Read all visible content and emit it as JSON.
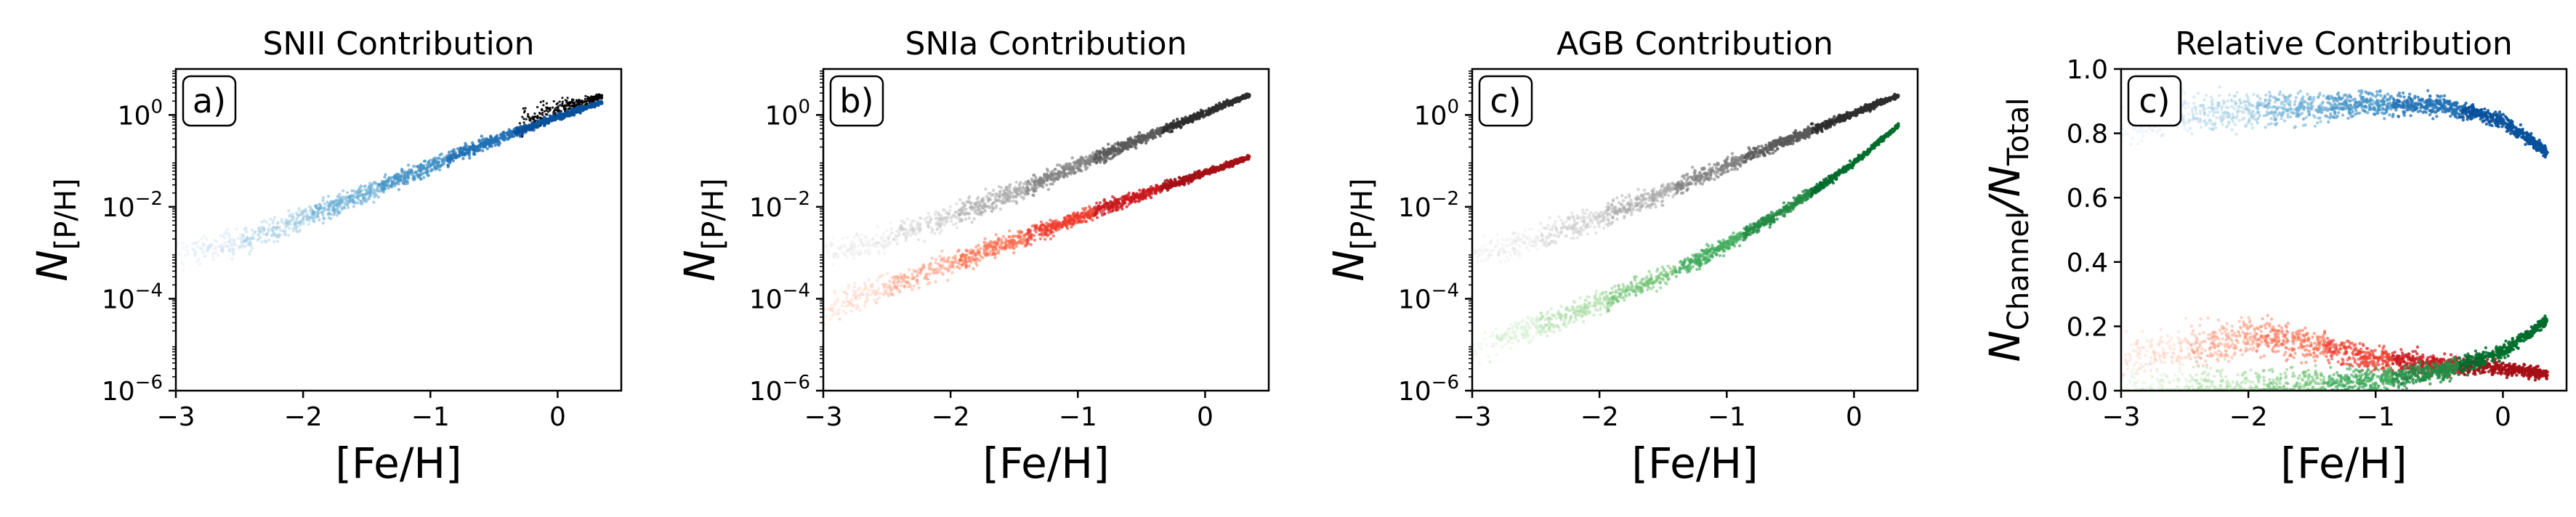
{
  "chart_data": [
    {
      "type": "scatter",
      "title": "SNII Contribution",
      "panel_tag": "a)",
      "xlabel": "[Fe/H]",
      "ylabel": "N[P/H]",
      "ylabel_parts": {
        "main": "N",
        "sub": "[P/H]"
      },
      "xlim": [
        -3,
        0.5
      ],
      "ylim": [
        1e-06,
        10
      ],
      "yscale": "log",
      "xticks": [
        -3,
        -2,
        -1,
        0
      ],
      "xtick_labels": [
        "−3",
        "−2",
        "−1",
        "0"
      ],
      "yticks": [
        1e-06,
        0.0001,
        0.01,
        1
      ],
      "ytick_labels": [
        {
          "base": "10",
          "exp": "−6"
        },
        {
          "base": "10",
          "exp": "−4"
        },
        {
          "base": "10",
          "exp": "−2"
        },
        {
          "base": "10",
          "exp": "0"
        }
      ],
      "series": [
        {
          "role": "total",
          "color": "#000000",
          "trend": [
            [
              -0.3,
              0.7
            ],
            [
              0.35,
              2.6
            ]
          ]
        },
        {
          "role": "channel",
          "colormap": "Blues",
          "trend": [
            [
              -3.0,
              0.0009
            ],
            [
              -2.5,
              0.0018
            ],
            [
              -2.0,
              0.0055
            ],
            [
              -1.5,
              0.02
            ],
            [
              -1.0,
              0.08
            ],
            [
              -0.5,
              0.28
            ],
            [
              0.0,
              0.9
            ],
            [
              0.35,
              1.9
            ]
          ]
        }
      ]
    },
    {
      "type": "scatter",
      "title": "SNIa Contribution",
      "panel_tag": "b)",
      "xlabel": "[Fe/H]",
      "ylabel": "N[P/H]",
      "ylabel_parts": {
        "main": "N",
        "sub": "[P/H]"
      },
      "xlim": [
        -3,
        0.5
      ],
      "ylim": [
        1e-06,
        10
      ],
      "yscale": "log",
      "xticks": [
        -3,
        -2,
        -1,
        0
      ],
      "xtick_labels": [
        "−3",
        "−2",
        "−1",
        "0"
      ],
      "yticks": [
        1e-06,
        0.0001,
        0.01,
        1
      ],
      "ytick_labels": [
        {
          "base": "10",
          "exp": "−6"
        },
        {
          "base": "10",
          "exp": "−4"
        },
        {
          "base": "10",
          "exp": "−2"
        },
        {
          "base": "10",
          "exp": "0"
        }
      ],
      "series": [
        {
          "role": "total",
          "colormap": "Greys",
          "trend": [
            [
              -3.0,
              0.0009
            ],
            [
              -2.5,
              0.002
            ],
            [
              -2.0,
              0.006
            ],
            [
              -1.5,
              0.02
            ],
            [
              -1.0,
              0.08
            ],
            [
              -0.5,
              0.3
            ],
            [
              0.0,
              1.1
            ],
            [
              0.35,
              2.7
            ]
          ]
        },
        {
          "role": "channel",
          "colormap": "Reds",
          "trend": [
            [
              -3.0,
              5e-05
            ],
            [
              -2.5,
              0.00018
            ],
            [
              -2.0,
              0.0006
            ],
            [
              -1.5,
              0.0018
            ],
            [
              -1.0,
              0.006
            ],
            [
              -0.5,
              0.018
            ],
            [
              0.0,
              0.055
            ],
            [
              0.35,
              0.12
            ]
          ]
        }
      ]
    },
    {
      "type": "scatter",
      "title": "AGB Contribution",
      "panel_tag": "c)",
      "xlabel": "[Fe/H]",
      "ylabel": "N[P/H]",
      "ylabel_parts": {
        "main": "N",
        "sub": "[P/H]"
      },
      "xlim": [
        -3,
        0.5
      ],
      "ylim": [
        1e-06,
        10
      ],
      "yscale": "log",
      "xticks": [
        -3,
        -2,
        -1,
        0
      ],
      "xtick_labels": [
        "−3",
        "−2",
        "−1",
        "0"
      ],
      "yticks": [
        1e-06,
        0.0001,
        0.01,
        1
      ],
      "ytick_labels": [
        {
          "base": "10",
          "exp": "−6"
        },
        {
          "base": "10",
          "exp": "−4"
        },
        {
          "base": "10",
          "exp": "−2"
        },
        {
          "base": "10",
          "exp": "0"
        }
      ],
      "series": [
        {
          "role": "total",
          "colormap": "Greys",
          "trend": [
            [
              -3.0,
              0.0009
            ],
            [
              -2.5,
              0.002
            ],
            [
              -2.0,
              0.006
            ],
            [
              -1.5,
              0.02
            ],
            [
              -1.0,
              0.08
            ],
            [
              -0.5,
              0.3
            ],
            [
              0.0,
              1.1
            ],
            [
              0.35,
              2.7
            ]
          ]
        },
        {
          "role": "channel",
          "colormap": "Greens",
          "trend": [
            [
              -3.0,
              7e-06
            ],
            [
              -2.5,
              2.5e-05
            ],
            [
              -2.0,
              8e-05
            ],
            [
              -1.5,
              0.0003
            ],
            [
              -1.0,
              0.0015
            ],
            [
              -0.5,
              0.01
            ],
            [
              0.0,
              0.09
            ],
            [
              0.35,
              0.6
            ]
          ]
        }
      ]
    },
    {
      "type": "scatter",
      "title": "Relative Contribution",
      "panel_tag": "c)",
      "xlabel": "[Fe/H]",
      "ylabel": "NChannel/NTotal",
      "ylabel_parts": {
        "main": "N",
        "sub": "Channel",
        "mid": "/N",
        "sub2": "Total"
      },
      "xlim": [
        -3,
        0.5
      ],
      "ylim": [
        0,
        1
      ],
      "yscale": "linear",
      "xticks": [
        -3,
        -2,
        -1,
        0
      ],
      "xtick_labels": [
        "−3",
        "−2",
        "−1",
        "0"
      ],
      "yticks": [
        0.0,
        0.2,
        0.4,
        0.6,
        0.8,
        1.0
      ],
      "ytick_labels": [
        "0.0",
        "0.2",
        "0.4",
        "0.6",
        "0.8",
        "1.0"
      ],
      "series": [
        {
          "role": "SNII",
          "colormap": "Blues",
          "trend": [
            [
              -3.0,
              0.82
            ],
            [
              -2.5,
              0.86
            ],
            [
              -2.0,
              0.87
            ],
            [
              -1.5,
              0.88
            ],
            [
              -1.0,
              0.89
            ],
            [
              -0.5,
              0.89
            ],
            [
              0.0,
              0.84
            ],
            [
              0.35,
              0.74
            ]
          ]
        },
        {
          "role": "SNIa",
          "colormap": "Reds",
          "trend": [
            [
              -3.0,
              0.1
            ],
            [
              -2.5,
              0.13
            ],
            [
              -2.0,
              0.17
            ],
            [
              -1.5,
              0.14
            ],
            [
              -1.0,
              0.1
            ],
            [
              -0.5,
              0.08
            ],
            [
              0.0,
              0.07
            ],
            [
              0.35,
              0.05
            ]
          ]
        },
        {
          "role": "AGB",
          "colormap": "Greens",
          "trend": [
            [
              -3.0,
              0.005
            ],
            [
              -2.5,
              0.008
            ],
            [
              -2.0,
              0.012
            ],
            [
              -1.5,
              0.02
            ],
            [
              -1.0,
              0.03
            ],
            [
              -0.5,
              0.06
            ],
            [
              0.0,
              0.12
            ],
            [
              0.35,
              0.22
            ]
          ]
        }
      ]
    }
  ]
}
